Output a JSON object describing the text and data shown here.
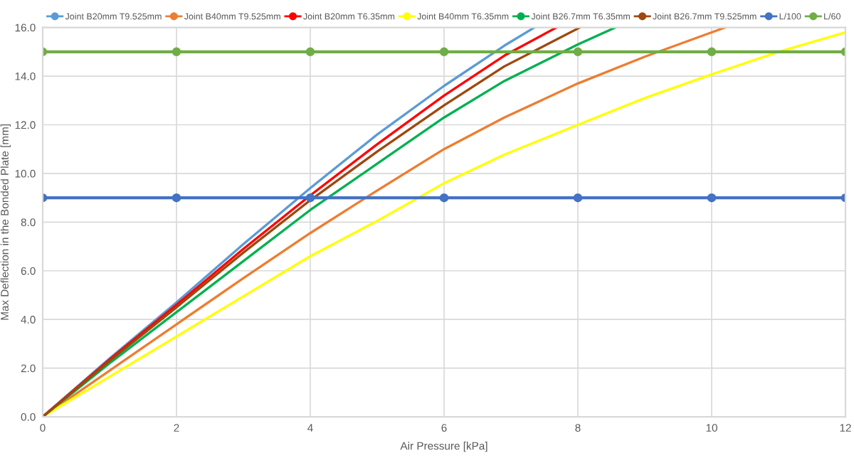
{
  "chart_data": {
    "type": "line",
    "xlabel": "Air Pressure [kPa]",
    "ylabel": "Max Deflection in the Bonded Plate [mm]",
    "xlim": [
      0,
      12
    ],
    "ylim": [
      0,
      16
    ],
    "xticks": [
      0,
      2,
      4,
      6,
      8,
      10,
      12
    ],
    "yticks": [
      {
        "value": 0,
        "label": "0.0"
      },
      {
        "value": 2,
        "label": "2.0"
      },
      {
        "value": 4,
        "label": "4.0"
      },
      {
        "value": 6,
        "label": "6.0"
      },
      {
        "value": 8,
        "label": "8.0"
      },
      {
        "value": 10,
        "label": "10.0"
      },
      {
        "value": 12,
        "label": "12.0"
      },
      {
        "value": 14,
        "label": "14.0"
      },
      {
        "value": 16,
        "label": "16.0"
      }
    ],
    "grid": true,
    "legend": "top",
    "marker": "none",
    "line_style": "solid",
    "series": [
      {
        "name": "Joint B20mm T9.525mm",
        "color": "#5b9bd5",
        "x": [
          0,
          1,
          2,
          3,
          4,
          5,
          6,
          6.9,
          7.35
        ],
        "values": [
          0,
          2.4,
          4.7,
          7.1,
          9.4,
          11.6,
          13.6,
          15.25,
          16
        ]
      },
      {
        "name": "Joint B40mm T9.525mm",
        "color": "#ed7d31",
        "x": [
          0,
          1,
          2,
          3,
          4,
          5,
          6,
          6.9,
          8,
          9,
          10,
          10.2
        ],
        "values": [
          0,
          1.9,
          3.8,
          5.7,
          7.55,
          9.3,
          11.0,
          12.3,
          13.7,
          14.8,
          15.8,
          16
        ]
      },
      {
        "name": "Joint B20mm T6.35mm",
        "color": "#ff0000",
        "x": [
          0,
          1,
          2,
          3,
          4,
          5,
          6,
          6.9,
          7.68
        ],
        "values": [
          0,
          2.35,
          4.6,
          6.9,
          9.1,
          11.2,
          13.2,
          14.84,
          16
        ]
      },
      {
        "name": "Joint B40mm T6.35mm",
        "color": "#ffff00",
        "x": [
          0,
          1,
          2,
          3,
          4,
          5,
          6,
          6.9,
          8,
          9,
          10,
          11,
          12
        ],
        "values": [
          0,
          1.65,
          3.3,
          4.95,
          6.6,
          8.05,
          9.6,
          10.77,
          12.0,
          13.1,
          14.07,
          15.0,
          15.8
        ]
      },
      {
        "name": "Joint B26.7mm T6.35mm",
        "color": "#00b050",
        "x": [
          0,
          1,
          2,
          3,
          4,
          5,
          6,
          6.9,
          8,
          8.56
        ],
        "values": [
          0,
          2.2,
          4.3,
          6.4,
          8.5,
          10.4,
          12.3,
          13.8,
          15.3,
          16
        ]
      },
      {
        "name": "Joint B26.7mm T9.525mm",
        "color": "#9e480e",
        "x": [
          0,
          1,
          2,
          3,
          4,
          5,
          6,
          6.9,
          8.03
        ],
        "values": [
          0,
          2.3,
          4.5,
          6.75,
          8.9,
          10.9,
          12.8,
          14.4,
          16
        ]
      },
      {
        "name": "L/100",
        "color": "#4472c4",
        "marker": "circle",
        "x": [
          0,
          2,
          4,
          6,
          8,
          10,
          12
        ],
        "values": [
          9,
          9,
          9,
          9,
          9,
          9,
          9
        ]
      },
      {
        "name": "L/60",
        "color": "#70ad47",
        "marker": "circle",
        "x": [
          0,
          2,
          4,
          6,
          8,
          10,
          12
        ],
        "values": [
          15,
          15,
          15,
          15,
          15,
          15,
          15
        ]
      }
    ]
  }
}
